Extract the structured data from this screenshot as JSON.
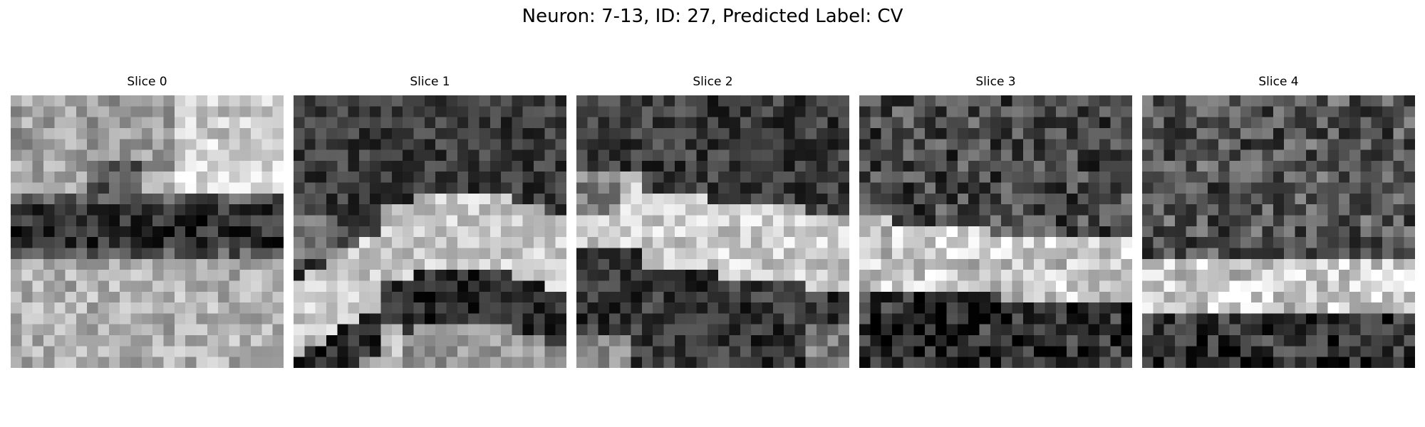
{
  "figure": {
    "title": "Neuron: 7-13, ID: 27, Predicted Label: CV"
  },
  "slices": [
    {
      "title": "Slice 0",
      "description": "bright upper band, dark horizontal membrane band in middle, bright lower region"
    },
    {
      "title": "Slice 1",
      "description": "dark top, bright curved band, dark curved membrane below, bright bottom-left"
    },
    {
      "title": "Slice 2",
      "description": "dark top, bright diagonal band, dark lower band"
    },
    {
      "title": "Slice 3",
      "description": "noisy dark top, bright horizontal band, dark bottom"
    },
    {
      "title": "Slice 4",
      "description": "noisy dark top, bright horizontal band near lower third, dark bottom"
    }
  ],
  "colormap": "gray"
}
